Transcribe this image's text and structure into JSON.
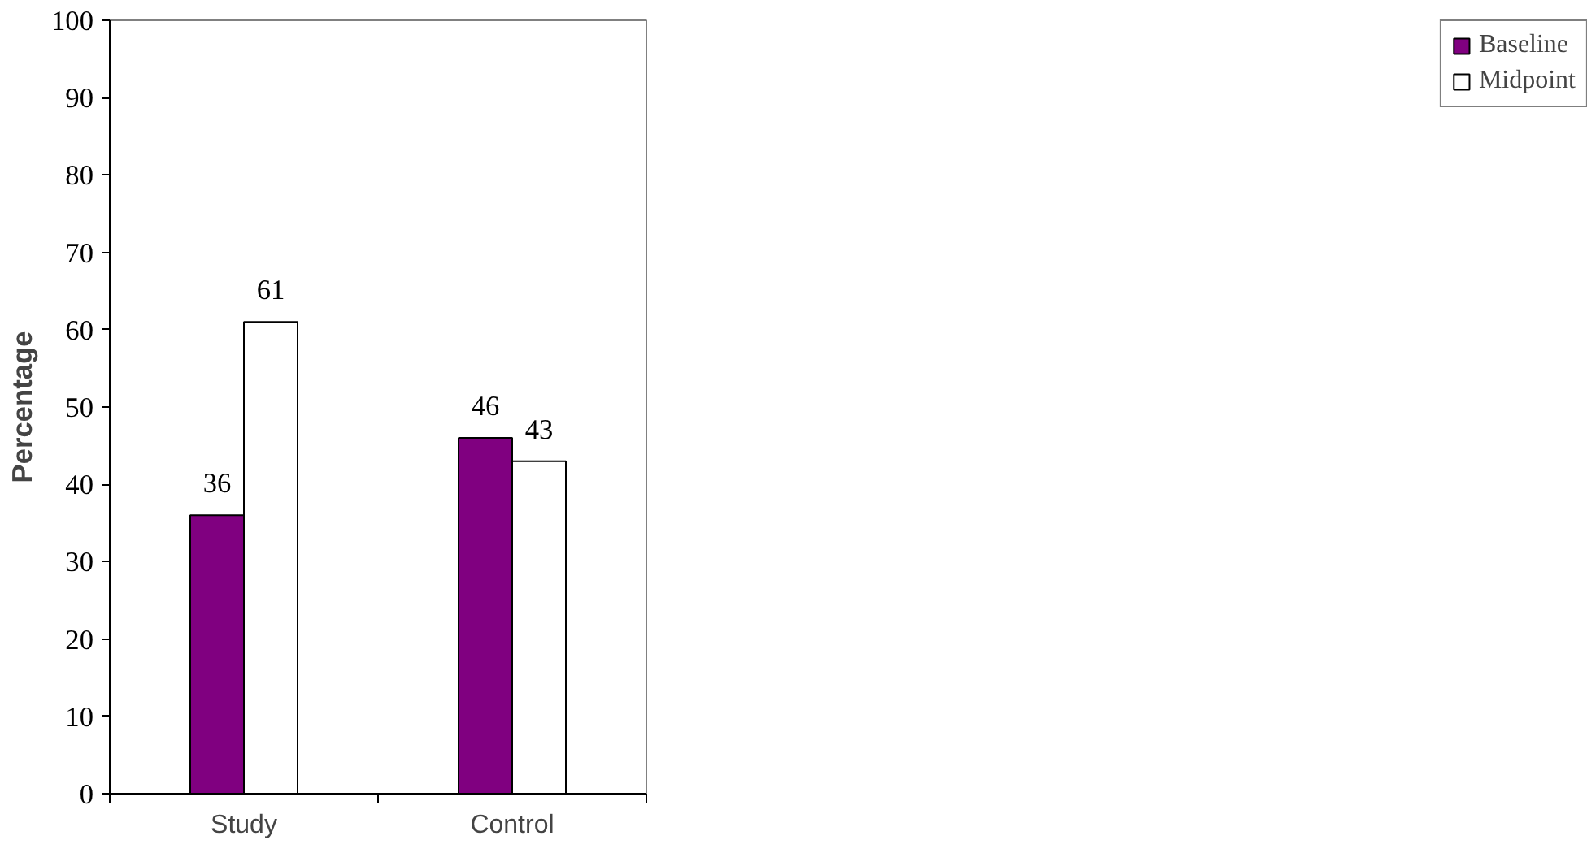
{
  "chart_data": {
    "type": "bar",
    "ylabel": "Percentage",
    "categories": [
      "Study",
      "Control"
    ],
    "series": [
      {
        "name": "Baseline",
        "color": "#800080",
        "values": [
          36,
          46
        ]
      },
      {
        "name": "Midpoint",
        "color": "#ffffff",
        "values": [
          61,
          43
        ]
      }
    ],
    "ylim": [
      0,
      100
    ],
    "yticks": [
      0,
      10,
      20,
      30,
      40,
      50,
      60,
      70,
      80,
      90,
      100
    ],
    "data_labels": true,
    "grid": false,
    "legend": "right"
  }
}
